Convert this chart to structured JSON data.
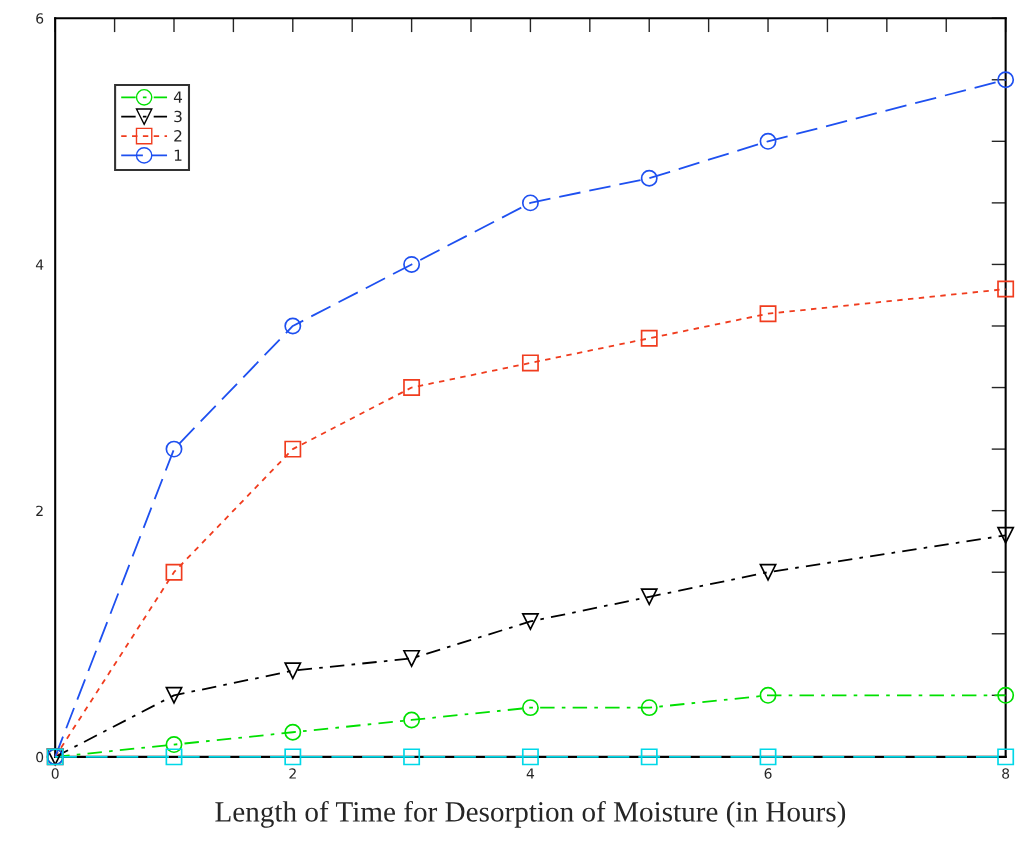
{
  "chart_data": {
    "type": "line",
    "xlabel": "Length of Time for Desorption of Moisture (in Hours)",
    "x": [
      0,
      1,
      2,
      3,
      4,
      5,
      6,
      8
    ],
    "series": [
      {
        "name": "4",
        "color": "#00e000",
        "values": [
          0,
          0.1,
          0.2,
          0.3,
          0.4,
          0.4,
          0.5,
          0.5
        ],
        "marker": "circle",
        "line_style": "dashdot"
      },
      {
        "name": "3",
        "color": "#000000",
        "values": [
          0,
          0.5,
          0.7,
          0.8,
          1.1,
          1.3,
          1.5,
          1.8
        ],
        "marker": "triangle",
        "line_style": "dashdot"
      },
      {
        "name": "2",
        "color": "#f03c1e",
        "values": [
          0,
          1.5,
          2.5,
          3.0,
          3.2,
          3.4,
          3.6,
          3.8
        ],
        "marker": "square",
        "line_style": "dotted"
      },
      {
        "name": "1",
        "color": "#1e50f0",
        "values": [
          0,
          2.5,
          3.5,
          4.0,
          4.5,
          4.7,
          5.0,
          5.5
        ],
        "marker": "circle",
        "line_style": "dashed"
      },
      {
        "color": "#00d8e8",
        "values": [
          0,
          0,
          0,
          0,
          0,
          0,
          0,
          0
        ],
        "marker": "square",
        "line_style": "dashed"
      }
    ],
    "xlim": [
      0,
      8
    ],
    "ylim": [
      0,
      6
    ],
    "xticks": [
      0,
      {
        "value": 0.5,
        "label": null
      },
      {
        "value": 1,
        "label": null
      },
      {
        "value": 1.5,
        "label": null
      },
      2,
      {
        "value": 2.5,
        "label": null
      },
      {
        "value": 3,
        "label": null
      },
      {
        "value": 3.5,
        "label": null
      },
      4,
      {
        "value": 4.5,
        "label": null
      },
      {
        "value": 5,
        "label": null
      },
      {
        "value": 5.5,
        "label": null
      },
      6,
      {
        "value": 6.5,
        "label": null
      },
      {
        "value": 7,
        "label": null
      },
      {
        "value": 7.5,
        "label": null
      },
      8
    ],
    "yticks": [
      0,
      {
        "value": 0.5,
        "label": null
      },
      {
        "value": 1,
        "label": null
      },
      {
        "value": 1.5,
        "label": null
      },
      2,
      {
        "value": 2.5,
        "label": null
      },
      {
        "value": 3,
        "label": null
      },
      {
        "value": 3.5,
        "label": null
      },
      4,
      {
        "value": 4.5,
        "label": null
      },
      {
        "value": 5,
        "label": null
      },
      {
        "value": 5.5,
        "label": null
      },
      6
    ],
    "grid": false,
    "legend": "top left"
  }
}
